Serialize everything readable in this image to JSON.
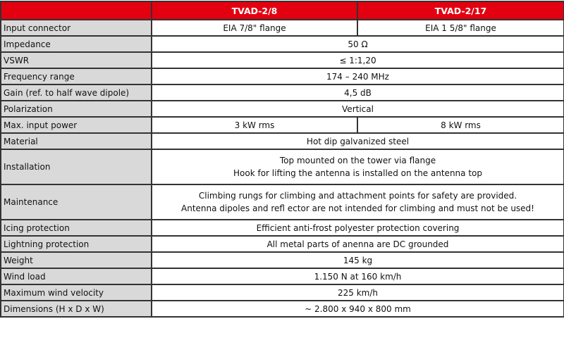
{
  "header": {
    "col1": "TVAD-2/8",
    "col2": "TVAD-2/17"
  },
  "rows": [
    {
      "label": "Input connector",
      "values": [
        "EIA 7/8\" flange",
        "EIA 1 5/8\" flange"
      ]
    },
    {
      "label": "Impedance",
      "value": "50 Ω"
    },
    {
      "label": "VSWR",
      "value": "≤ 1:1,20"
    },
    {
      "label": "Frequency range",
      "value": "174 – 240 MHz"
    },
    {
      "label": "Gain (ref. to half wave dipole)",
      "value": "4,5 dB"
    },
    {
      "label": "Polarization",
      "value": "Vertical"
    },
    {
      "label": "Max. input power",
      "values": [
        "3 kW rms",
        "8 kW rms"
      ]
    },
    {
      "label": "Material",
      "value": "Hot dip galvanized steel"
    },
    {
      "label": "Installation",
      "lines": [
        "Top mounted on the tower via flange",
        "Hook for lifting the antenna is installed on the antenna top"
      ]
    },
    {
      "label": "Maintenance",
      "lines": [
        "Climbing rungs for climbing and attachment points for safety are provided.",
        "Antenna dipoles and refl ector are not intended for climbing and must not be used!"
      ]
    },
    {
      "label": "Icing protection",
      "value": "Efficient anti-frost polyester protection covering"
    },
    {
      "label": "Lightning protection",
      "value": "All metal parts of anenna are DC grounded"
    },
    {
      "label": "Weight",
      "value": "145 kg"
    },
    {
      "label": "Wind load",
      "value": "1.150 N at 160 km/h"
    },
    {
      "label": "Maximum wind velocity",
      "value": "225 km/h"
    },
    {
      "label": "Dimensions (H x D x W)",
      "value": "~ 2.800 x 940 x 800 mm"
    }
  ],
  "colors": {
    "header": "#e30010",
    "label_bg": "#d9d9d9"
  }
}
